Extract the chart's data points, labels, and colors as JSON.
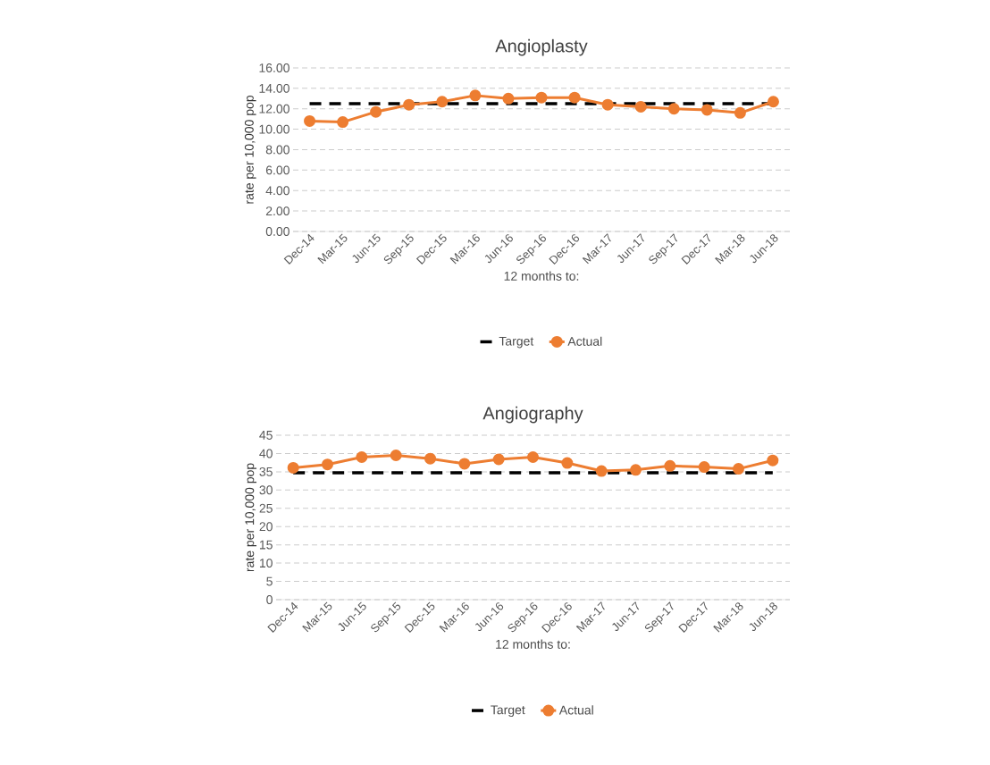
{
  "chart_data": [
    {
      "type": "line",
      "title": "Angioplasty",
      "xlabel": "12 months to:",
      "ylabel": "rate per 10,000 pop",
      "categories": [
        "Dec-14",
        "Mar-15",
        "Jun-15",
        "Sep-15",
        "Dec-15",
        "Mar-16",
        "Jun-16",
        "Sep-16",
        "Dec-16",
        "Mar-17",
        "Jun-17",
        "Sep-17",
        "Dec-17",
        "Mar-18",
        "Jun-18"
      ],
      "series": [
        {
          "name": "Target",
          "color": "#000000",
          "line_style": "dashed",
          "marker": "none",
          "values": [
            12.5,
            12.5,
            12.5,
            12.5,
            12.5,
            12.5,
            12.5,
            12.5,
            12.5,
            12.5,
            12.5,
            12.5,
            12.5,
            12.5,
            12.5
          ]
        },
        {
          "name": "Actual",
          "color": "#ed7d31",
          "line_style": "solid",
          "marker": "circle",
          "values": [
            10.8,
            10.7,
            11.7,
            12.4,
            12.7,
            13.3,
            13.0,
            13.1,
            13.1,
            12.4,
            12.2,
            12.0,
            11.9,
            11.6,
            12.7
          ]
        }
      ],
      "ylim": [
        0,
        16
      ],
      "yticks": [
        {
          "value": 0,
          "label": "0.00"
        },
        {
          "value": 2,
          "label": "2.00"
        },
        {
          "value": 4,
          "label": "4.00"
        },
        {
          "value": 6,
          "label": "6.00"
        },
        {
          "value": 8,
          "label": "8.00"
        },
        {
          "value": 10,
          "label": "10.00"
        },
        {
          "value": 12,
          "label": "12.00"
        },
        {
          "value": 14,
          "label": "14.00"
        },
        {
          "value": 16,
          "label": "16.00"
        }
      ],
      "grid": "y",
      "legend": "bottom"
    },
    {
      "type": "line",
      "title": "Angiography",
      "xlabel": "12 months to:",
      "ylabel": "rate per 10,000 pop",
      "categories": [
        "Dec-14",
        "Mar-15",
        "Jun-15",
        "Sep-15",
        "Dec-15",
        "Mar-16",
        "Jun-16",
        "Sep-16",
        "Dec-16",
        "Mar-17",
        "Jun-17",
        "Sep-17",
        "Dec-17",
        "Mar-18",
        "Jun-18"
      ],
      "series": [
        {
          "name": "Target",
          "color": "#000000",
          "line_style": "dashed",
          "marker": "none",
          "values": [
            34.7,
            34.7,
            34.7,
            34.7,
            34.7,
            34.7,
            34.7,
            34.7,
            34.7,
            34.7,
            34.7,
            34.7,
            34.7,
            34.7,
            34.7
          ]
        },
        {
          "name": "Actual",
          "color": "#ed7d31",
          "line_style": "solid",
          "marker": "circle",
          "values": [
            36.1,
            37.0,
            39.0,
            39.5,
            38.6,
            37.2,
            38.4,
            39.0,
            37.4,
            35.2,
            35.5,
            36.6,
            36.3,
            35.8,
            38.1
          ]
        }
      ],
      "ylim": [
        0,
        45
      ],
      "yticks": [
        0,
        5,
        10,
        15,
        20,
        25,
        30,
        35,
        40,
        45
      ],
      "grid": "y",
      "legend": "bottom"
    }
  ]
}
